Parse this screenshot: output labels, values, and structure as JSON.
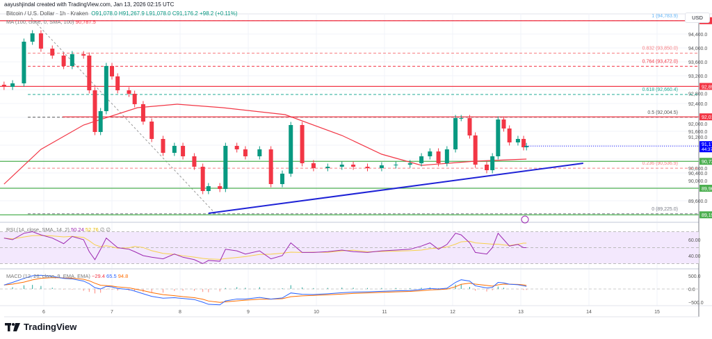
{
  "header": {
    "credit": "aayushjindal created with TradingView.com, Jan 13, 2026 02:15 UTC",
    "symbol": "Bitcoin / U.S. Dollar · 1h · Kraken",
    "ohlc": "O91,078.0  H91,267.9  L91,078.0  C91,176.2  +98.2 (+0.11%)",
    "ma_label": "MA (100, close, 0, SMA, 100)",
    "ma_value": "90,787.5",
    "rsi_label": "RSI (14, close, SMA, 14, 2)",
    "rsi_values": [
      "50.24",
      "52.76",
      "∅",
      "∅"
    ],
    "macd_label": "MACD (12, 26, close, 9, EMA, EMA)",
    "macd_values": [
      "−29.4",
      "65.5",
      "94.8"
    ],
    "currency": "USD"
  },
  "logo": "TradingView",
  "colors": {
    "up": "#089981",
    "down": "#f23645",
    "ma": "#f23645",
    "trend": "#1e22d6",
    "rsi": "#9c27b0",
    "rsi_ma": "#f7d04a",
    "macd": "#2962ff",
    "signal": "#ff6d00",
    "support": "#4caf50",
    "resistance": "#f23645",
    "last": "#0000ff"
  },
  "chart_data": [
    {
      "type": "candlestick",
      "title": "Bitcoin / U.S. Dollar · 1h · Kraken",
      "x_ticks": [
        "6",
        "7",
        "8",
        "9",
        "10",
        "11",
        "12",
        "13",
        "14",
        "15"
      ],
      "y_ticks": [
        "94,400.0",
        "94,000.0",
        "93,600.0",
        "93,200.0",
        "92,800.0",
        "92,400.0",
        "92,000.0",
        "91,600.0",
        "91,200.0",
        "90,800.0",
        "90,400.0",
        "90,000.0",
        "89,600.0"
      ],
      "ylim": [
        89000,
        95300
      ],
      "price_ticks": [
        94400,
        94000,
        93600,
        93200,
        92800,
        92400,
        92000,
        91600,
        91200,
        90800,
        90400,
        90000,
        89600
      ],
      "times": [
        "05 10:00",
        "05 13:00",
        "05 17:00",
        "05 20:00",
        "05 23:00",
        "06 03:00",
        "06 07:00",
        "06 10:00",
        "06 14:00",
        "06 16:00",
        "06 18:00",
        "06 20:00",
        "06 22:00",
        "07 00:00",
        "07 02:00",
        "07 06:00",
        "07 08:00",
        "07 11:00",
        "07 14:00",
        "07 18:00",
        "07 22:00",
        "08 01:00",
        "08 05:00",
        "08 08:00",
        "08 10:00",
        "08 14:00",
        "08 16:00",
        "08 20:00",
        "08 23:00",
        "09 04:00",
        "09 08:00",
        "09 12:00",
        "09 15:00",
        "09 19:00",
        "09 23:00",
        "10 04:00",
        "10 09:00",
        "10 13:00",
        "10 18:00",
        "10 23:00",
        "11 04:00",
        "11 09:00",
        "11 13:00",
        "11 16:00",
        "11 19:00",
        "11 22:00",
        "12 01:00",
        "12 03:00",
        "12 06:00",
        "12 08:00",
        "12 12:00",
        "12 14:00",
        "12 16:00",
        "12 18:00",
        "12 20:00",
        "12 23:00",
        "13 01:00",
        "13 02:00"
      ],
      "close": [
        92880,
        92980,
        94180,
        94420,
        93980,
        93780,
        93480,
        93820,
        93780,
        92780,
        91580,
        92180,
        93480,
        93180,
        92780,
        92680,
        92380,
        91880,
        91380,
        90980,
        91180,
        90880,
        90580,
        89880,
        90020,
        89940,
        91180,
        91080,
        90880,
        91080,
        90080,
        90380,
        91780,
        90680,
        90540,
        90580,
        90640,
        90580,
        90540,
        90620,
        90640,
        90680,
        90880,
        91020,
        90680,
        91080,
        91980,
        91980,
        91480,
        90640,
        90480,
        90880,
        91940,
        91680,
        91280,
        91380,
        91140,
        91176.2
      ],
      "ma100": {
        "times": [
          "05 10:00",
          "05 23:00",
          "06 14:00",
          "07 09:00",
          "07 23:00",
          "08 15:00",
          "09 13:00",
          "10 09:00",
          "10 23:00",
          "11 13:00",
          "12 08:00",
          "13 02:00"
        ],
        "values": [
          90080,
          91080,
          91780,
          92280,
          92380,
          92280,
          92080,
          91480,
          90940,
          90620,
          90740,
          90800
        ]
      },
      "trendline": {
        "times": [
          "08 10:00",
          "13 22:00"
        ],
        "values": [
          89240,
          90680
        ]
      },
      "horizontal_levels": [
        {
          "price": 94783.9,
          "label": "",
          "kind": "resistance"
        },
        {
          "price": 92891.8,
          "label": "92,891.8",
          "kind": "resistance"
        },
        {
          "price": 92015.7,
          "label": "92,015.7",
          "kind": "resistance"
        },
        {
          "price": 90735.2,
          "label": "90,735.2",
          "kind": "support"
        },
        {
          "price": 89960.2,
          "label": "89,960.2",
          "kind": "support"
        },
        {
          "price": 89195.1,
          "label": "89,195.1",
          "kind": "support"
        }
      ],
      "last_price": {
        "price": 91176.2,
        "label": "91,176.2",
        "countdown": "44:37"
      },
      "fibonacci": [
        {
          "ratio": "1",
          "price": 94783.9,
          "label": "1 (94,783.9)",
          "color": "#64b5f6"
        },
        {
          "ratio": "0.832",
          "price": 93850.0,
          "label": "0.832 (93,850.0)",
          "color": "#f77c80"
        },
        {
          "ratio": "0.764",
          "price": 93472.0,
          "label": "0.764 (93,472.0)",
          "color": "#f23645"
        },
        {
          "ratio": "0.618",
          "price": 92660.4,
          "label": "0.618 (92,660.4)",
          "color": "#22ab94"
        },
        {
          "ratio": "0.5",
          "price": 92004.5,
          "label": "0.5 (92,004.5)",
          "color": "#555555"
        },
        {
          "ratio": "0.236",
          "price": 90536.9,
          "label": "0.236 (90,536.9)",
          "color": "#f77c80"
        },
        {
          "ratio": "0",
          "price": 89225.0,
          "label": "0 (89,225.0)",
          "color": "#787b86"
        }
      ]
    },
    {
      "type": "line",
      "title": "RSI (14, close, SMA, 14, 2)",
      "ylim": [
        26,
        78
      ],
      "y_ticks": [
        "60.00",
        "40.00"
      ],
      "tick_values": [
        60,
        40
      ],
      "band": [
        30,
        70
      ],
      "values": [
        62,
        60,
        68,
        70,
        66,
        62,
        55,
        64,
        60,
        45,
        35,
        48,
        62,
        56,
        50,
        48,
        45,
        40,
        38,
        36,
        42,
        38,
        35,
        30,
        34,
        33,
        48,
        46,
        42,
        46,
        36,
        40,
        56,
        44,
        44,
        45,
        47,
        45,
        44,
        46,
        47,
        48,
        52,
        56,
        48,
        54,
        68,
        66,
        56,
        44,
        42,
        50,
        68,
        60,
        52,
        54,
        50,
        50
      ]
    },
    {
      "type": "line",
      "title": "MACD (12, 26, close, 9, EMA, EMA)",
      "y_ticks": [
        "500.0",
        "0.0",
        "−500.0"
      ],
      "tick_values": [
        500,
        0,
        -500
      ],
      "values": [
        150,
        250,
        400,
        500,
        520,
        480,
        400,
        380,
        300,
        200,
        50,
        0,
        100,
        80,
        20,
        -20,
        -80,
        -180,
        -280,
        -350,
        -330,
        -360,
        -400,
        -500,
        -580,
        -600,
        -450,
        -380,
        -380,
        -320,
        -380,
        -340,
        -150,
        -200,
        -210,
        -180,
        -140,
        -120,
        -110,
        -90,
        -70,
        -60,
        -20,
        20,
        0,
        30,
        250,
        350,
        300,
        120,
        40,
        60,
        250,
        230,
        180,
        160,
        120,
        100
      ]
    }
  ]
}
